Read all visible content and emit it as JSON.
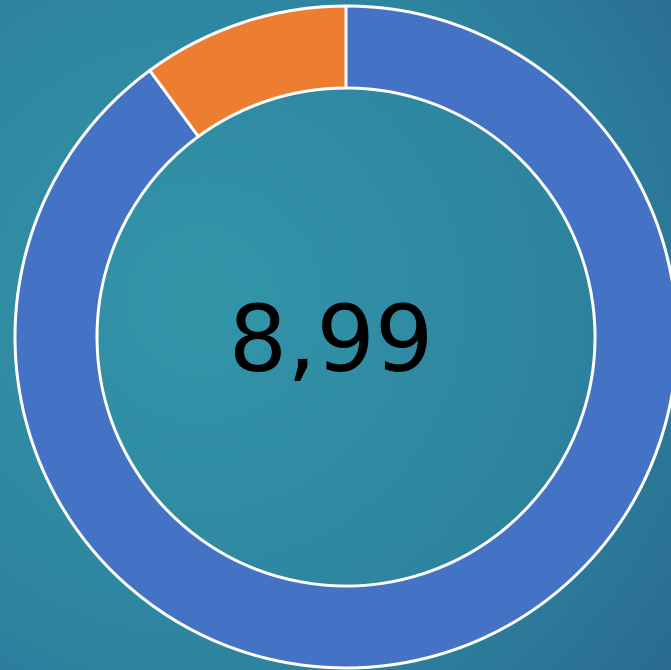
{
  "chart_data": {
    "type": "donut",
    "categories": [
      null,
      null
    ],
    "values": [
      8.99,
      1.01
    ],
    "colors": [
      "#4472c4",
      "#ed7d31"
    ],
    "center_label": "8,99"
  }
}
